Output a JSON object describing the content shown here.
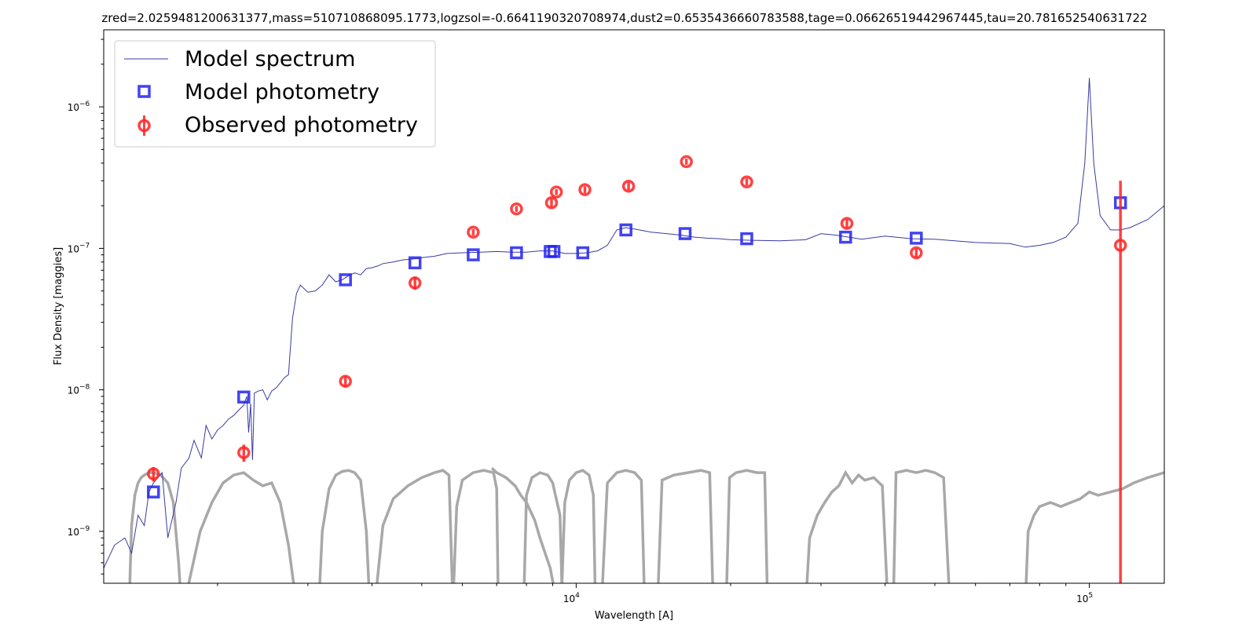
{
  "chart_data": {
    "type": "scatter",
    "title": "zred=2.0259481200631377,mass=510710868095.1773,logzsol=-0.6641190320708974,dust2=0.6535436660783588,tage=0.06626519442967445,tau=20.781652540631722",
    "xlabel": "Wavelength [A]",
    "ylabel": "Flux Density [maggies]",
    "x_scale": "log",
    "y_scale": "log",
    "xlim": [
      1200,
      140000
    ],
    "ylim": [
      4.3e-10,
      3.5e-06
    ],
    "grid": false,
    "legend_position": "top-left",
    "x_ticks": [
      {
        "value": 10000,
        "base": "10",
        "exp": "4"
      },
      {
        "value": 100000,
        "base": "10",
        "exp": "5"
      }
    ],
    "y_ticks": [
      {
        "value": 1e-09,
        "base": "10",
        "exp": "−9"
      },
      {
        "value": 1e-08,
        "base": "10",
        "exp": "−8"
      },
      {
        "value": 1e-07,
        "base": "10",
        "exp": "−7"
      },
      {
        "value": 1e-06,
        "base": "10",
        "exp": "−6"
      }
    ],
    "legend": [
      {
        "label": "Model spectrum",
        "marker": "line"
      },
      {
        "label": "Model photometry",
        "marker": "square"
      },
      {
        "label": "Observed photometry",
        "marker": "circle-errorbar"
      }
    ],
    "series": [
      {
        "name": "Model spectrum",
        "kind": "line",
        "color": "#3a3aa0",
        "x": [
          1200,
          1260,
          1320,
          1360,
          1400,
          1440,
          1470,
          1500,
          1560,
          1600,
          1660,
          1700,
          1760,
          1800,
          1860,
          1900,
          1950,
          2000,
          2050,
          2100,
          2150,
          2200,
          2250,
          2280,
          2300,
          2320,
          2340,
          2360,
          2400,
          2450,
          2500,
          2550,
          2600,
          2650,
          2700,
          2750,
          2800,
          2850,
          2900,
          3000,
          3100,
          3200,
          3300,
          3400,
          3500,
          3600,
          3700,
          3800,
          3900,
          4000,
          4100,
          4200,
          4400,
          4600,
          4800,
          5000,
          5300,
          5600,
          6000,
          6500,
          7000,
          7500,
          8000,
          8500,
          9000,
          9500,
          10000,
          10500,
          11000,
          11500,
          12000,
          12500,
          13000,
          14000,
          15000,
          16000,
          17000,
          18000,
          19000,
          20000,
          22000,
          25000,
          28000,
          30000,
          32000,
          34000,
          36000,
          40000,
          45000,
          50000,
          60000,
          70000,
          75000,
          80000,
          85000,
          90000,
          95000,
          98000,
          100000,
          102000,
          105000,
          110000,
          115000,
          120000,
          130000,
          140000
        ],
        "y": [
          5.5e-10,
          8e-10,
          9e-10,
          7e-10,
          1.3e-09,
          1.1e-09,
          1.9e-09,
          2.2e-09,
          2.6e-09,
          9e-10,
          1.6e-09,
          2.8e-09,
          3.3e-09,
          4.4e-09,
          3.3e-09,
          5.6e-09,
          4.5e-09,
          5.2e-09,
          5.6e-09,
          6.2e-09,
          6.6e-09,
          7.2e-09,
          7.8e-09,
          9e-09,
          5e-09,
          8e-09,
          3.2e-09,
          9.5e-09,
          9.8e-09,
          1e-08,
          8.5e-09,
          9.8e-09,
          1.03e-08,
          1.12e-08,
          1.22e-08,
          1.28e-08,
          3.2e-08,
          4.8e-08,
          5.5e-08,
          4.9e-08,
          5e-08,
          5.5e-08,
          6.5e-08,
          5.8e-08,
          6e-08,
          6.4e-08,
          6.7e-08,
          6.5e-08,
          7.2e-08,
          7.3e-08,
          7.5e-08,
          7.8e-08,
          8e-08,
          8.3e-08,
          8.4e-08,
          8.6e-08,
          8.8e-08,
          9.2e-08,
          9.3e-08,
          9.4e-08,
          9.5e-08,
          9.4e-08,
          9.4e-08,
          9.6e-08,
          9.6e-08,
          9.2e-08,
          9.2e-08,
          9.3e-08,
          9.6e-08,
          1.05e-07,
          1.35e-07,
          1.4e-07,
          1.37e-07,
          1.3e-07,
          1.27e-07,
          1.24e-07,
          1.2e-07,
          1.18e-07,
          1.17e-07,
          1.15e-07,
          1.14e-07,
          1.13e-07,
          1.15e-07,
          1.27e-07,
          1.24e-07,
          1.2e-07,
          1.16e-07,
          1.22e-07,
          1.17e-07,
          1.16e-07,
          1.1e-07,
          1.08e-07,
          1.02e-07,
          1.05e-07,
          1.1e-07,
          1.2e-07,
          1.5e-07,
          4e-07,
          1.6e-06,
          4e-07,
          1.7e-07,
          1.35e-07,
          1.35e-07,
          1.4e-07,
          1.6e-07,
          2e-07
        ]
      },
      {
        "name": "Model photometry",
        "kind": "marker",
        "color": "#2222ee",
        "x": [
          1500,
          2250,
          3550,
          4850,
          6300,
          7650,
          8900,
          9050,
          10300,
          12500,
          16300,
          21500,
          33500,
          46000,
          115000
        ],
        "y": [
          1.9e-09,
          8.9e-09,
          6e-08,
          7.9e-08,
          9e-08,
          9.3e-08,
          9.5e-08,
          9.5e-08,
          9.3e-08,
          1.35e-07,
          1.27e-07,
          1.17e-07,
          1.2e-07,
          1.18e-07,
          2.1e-07
        ]
      },
      {
        "name": "Observed photometry",
        "kind": "marker",
        "color": "#ff2222",
        "x": [
          1500,
          2250,
          3550,
          4850,
          6300,
          7650,
          8950,
          9150,
          10400,
          12650,
          16400,
          21500,
          33700,
          46000,
          115000
        ],
        "y": [
          2.55e-09,
          3.6e-09,
          1.15e-08,
          5.7e-08,
          1.3e-07,
          1.9e-07,
          2.1e-07,
          2.5e-07,
          2.6e-07,
          2.75e-07,
          4.1e-07,
          2.95e-07,
          1.5e-07,
          9.3e-08,
          1.05e-07
        ],
        "yerr": [
          3e-10,
          5e-10,
          1e-09,
          6e-09,
          7e-09,
          9e-09,
          1.5e-08,
          1.2e-08,
          1.5e-08,
          1.7e-08,
          2e-08,
          1.7e-08,
          1.1e-08,
          7e-09,
          1.95e-07
        ]
      }
    ],
    "filter_curves": [
      {
        "color": "#a8a8a8",
        "x": [
          1345,
          1360,
          1380,
          1400,
          1420,
          1440,
          1470,
          1500,
          1550,
          1600,
          1640,
          1680,
          1700
        ],
        "y": [
          3e-10,
          1.1e-09,
          1.8e-09,
          2.2e-09,
          2.4e-09,
          2.5e-09,
          2.6e-09,
          2.6e-09,
          2.5e-09,
          2.2e-09,
          1.6e-09,
          6e-10,
          3e-10
        ]
      },
      {
        "color": "#a8a8a8",
        "x": [
          1750,
          1850,
          1950,
          2050,
          2150,
          2250,
          2350,
          2450,
          2550,
          2650,
          2750,
          2850
        ],
        "y": [
          4e-10,
          1e-09,
          1.6e-09,
          2.2e-09,
          2.5e-09,
          2.6e-09,
          2.3e-09,
          2.1e-09,
          2.2e-09,
          1.6e-09,
          8e-10,
          3e-10
        ]
      },
      {
        "color": "#a8a8a8",
        "x": [
          3150,
          3200,
          3300,
          3400,
          3500,
          3600,
          3700,
          3800,
          3900,
          3960
        ],
        "y": [
          3e-10,
          1e-09,
          2e-09,
          2.5e-09,
          2.65e-09,
          2.7e-09,
          2.6e-09,
          2.3e-09,
          1e-09,
          3e-10
        ]
      },
      {
        "color": "#a8a8a8",
        "x": [
          4050,
          4200,
          4400,
          4700,
          5000,
          5300,
          5500,
          5650,
          5750
        ],
        "y": [
          3e-10,
          1.1e-09,
          1.7e-09,
          2.1e-09,
          2.4e-09,
          2.6e-09,
          2.7e-09,
          2.5e-09,
          3e-10
        ]
      },
      {
        "color": "#a8a8a8",
        "x": [
          5750,
          5850,
          6000,
          6300,
          6600,
          6900,
          7000,
          7050
        ],
        "y": [
          3e-10,
          1.5e-09,
          2.3e-09,
          2.6e-09,
          2.7e-09,
          2.6e-09,
          2e-09,
          3e-10
        ]
      },
      {
        "color": "#a8a8a8",
        "x": [
          6850,
          7000,
          7300,
          7600,
          7800,
          8000,
          8300,
          8500,
          8700,
          8900,
          9050,
          9200
        ],
        "y": [
          2.8e-09,
          2.6e-09,
          2.4e-09,
          2.1e-09,
          1.8e-09,
          1.6e-09,
          1.2e-09,
          9e-10,
          7e-10,
          5.5e-10,
          4e-10,
          3e-10
        ]
      },
      {
        "color": "#a8a8a8",
        "x": [
          7900,
          8000,
          8200,
          8500,
          8800,
          9000,
          9300,
          9400
        ],
        "y": [
          3e-10,
          1.8e-09,
          2.4e-09,
          2.6e-09,
          2.5e-09,
          2.2e-09,
          1.3e-09,
          3e-10
        ]
      },
      {
        "color": "#a8a8a8",
        "x": [
          9350,
          9500,
          9700,
          10000,
          10300,
          10600,
          10800,
          10900
        ],
        "y": [
          3e-10,
          1.6e-09,
          2.3e-09,
          2.6e-09,
          2.7e-09,
          2.5e-09,
          1.8e-09,
          3e-10
        ]
      },
      {
        "color": "#a8a8a8",
        "x": [
          11200,
          11500,
          12000,
          12500,
          13000,
          13400,
          13600
        ],
        "y": [
          3e-10,
          2.2e-09,
          2.6e-09,
          2.7e-09,
          2.6e-09,
          2.3e-09,
          3e-10
        ]
      },
      {
        "color": "#a8a8a8",
        "x": [
          14400,
          14700,
          15500,
          16500,
          17500,
          18200,
          18500
        ],
        "y": [
          3e-10,
          2.3e-09,
          2.5e-09,
          2.6e-09,
          2.7e-09,
          2.6e-09,
          3e-10
        ]
      },
      {
        "color": "#a8a8a8",
        "x": [
          19600,
          19900,
          20500,
          21500,
          22500,
          23300,
          23600
        ],
        "y": [
          3e-10,
          2.4e-09,
          2.6e-09,
          2.7e-09,
          2.6e-09,
          2.6e-09,
          3e-10
        ]
      },
      {
        "color": "#a8a8a8",
        "x": [
          28000,
          28500,
          29500,
          30500,
          31500,
          32500,
          33500,
          34500,
          35500,
          36500,
          38000,
          39500,
          40500
        ],
        "y": [
          3e-10,
          9e-10,
          1.3e-09,
          1.6e-09,
          1.9e-09,
          2.1e-09,
          2.6e-09,
          2.2e-09,
          2.5e-09,
          2.3e-09,
          2.4e-09,
          2.1e-09,
          3e-10
        ]
      },
      {
        "color": "#a8a8a8",
        "x": [
          41500,
          42000,
          44000,
          46000,
          48000,
          50000,
          52000,
          53500
        ],
        "y": [
          3e-10,
          2.6e-09,
          2.7e-09,
          2.6e-09,
          2.7e-09,
          2.6e-09,
          2.4e-09,
          3e-10
        ]
      },
      {
        "color": "#a8a8a8",
        "x": [
          75000,
          76000,
          78000,
          80000,
          84000,
          88000,
          92000,
          96000,
          100000,
          104000,
          110000,
          116000,
          122000,
          130000,
          140000
        ],
        "y": [
          3e-10,
          1e-09,
          1.3e-09,
          1.5e-09,
          1.6e-09,
          1.5e-09,
          1.6e-09,
          1.7e-09,
          1.9e-09,
          1.8e-09,
          1.9e-09,
          2e-09,
          2.2e-09,
          2.4e-09,
          2.6e-09
        ]
      }
    ]
  }
}
